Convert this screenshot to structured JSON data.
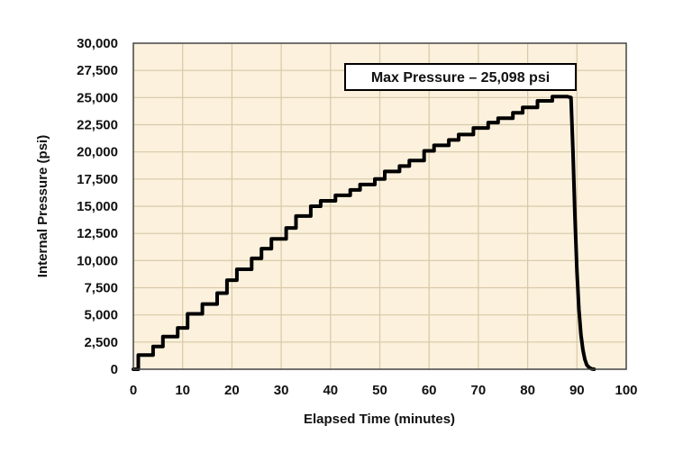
{
  "chart_data": {
    "type": "line",
    "title": "",
    "xlabel": "Elapsed Time (minutes)",
    "ylabel": "Internal Pressure (psi)",
    "xlim": [
      0,
      100
    ],
    "ylim": [
      0,
      30000
    ],
    "x_ticks": [
      0,
      10,
      20,
      30,
      40,
      50,
      60,
      70,
      80,
      90,
      100
    ],
    "x_tick_labels": [
      "0",
      "10",
      "20",
      "30",
      "40",
      "50",
      "60",
      "70",
      "80",
      "90",
      "100"
    ],
    "y_ticks": [
      0,
      2500,
      5000,
      7500,
      10000,
      12500,
      15000,
      17500,
      20000,
      22500,
      25000,
      27500,
      30000
    ],
    "y_tick_labels": [
      "0",
      "2,500",
      "5,000",
      "7,500",
      "10,000",
      "12,500",
      "15,000",
      "17,500",
      "20,000",
      "22,500",
      "25,000",
      "27,500",
      "30,000"
    ],
    "grid": true,
    "background_color": "#fbf1dc",
    "grid_color": "#d8c9a8",
    "line_color": "#000000",
    "series": [
      {
        "x": [
          0,
          1,
          1,
          4,
          4,
          6,
          6,
          9,
          9,
          11,
          11,
          14,
          14,
          17,
          17,
          19,
          19,
          21,
          21,
          24,
          24,
          26,
          26,
          28,
          28,
          31,
          31,
          33,
          33,
          36,
          36,
          38,
          38,
          41,
          41,
          44,
          44,
          46,
          46,
          49,
          49,
          51,
          51,
          54,
          54,
          56,
          56,
          59,
          59,
          61,
          61,
          64,
          64,
          66,
          66,
          69,
          69,
          72,
          72,
          74,
          74,
          77,
          77,
          79,
          79,
          82,
          82,
          85,
          85,
          88,
          88.8,
          89.2,
          89.6,
          90,
          90.4,
          90.8,
          91.2,
          91.6,
          92,
          92.5,
          93,
          93.5
        ],
        "y": [
          0,
          0,
          1300,
          1300,
          2100,
          2100,
          3000,
          3000,
          3800,
          3800,
          5100,
          5100,
          6000,
          6000,
          7000,
          7000,
          8200,
          8200,
          9200,
          9200,
          10200,
          10200,
          11100,
          11100,
          12000,
          12000,
          13000,
          13000,
          14100,
          14100,
          15000,
          15000,
          15500,
          15500,
          16000,
          16000,
          16500,
          16500,
          17000,
          17000,
          17500,
          17500,
          18200,
          18200,
          18700,
          18700,
          19200,
          19200,
          20100,
          20100,
          20600,
          20600,
          21100,
          21100,
          21600,
          21600,
          22200,
          22200,
          22700,
          22700,
          23100,
          23100,
          23600,
          23600,
          24100,
          24100,
          24700,
          24700,
          25098,
          25098,
          25000,
          20000,
          14000,
          9000,
          5500,
          3200,
          1800,
          900,
          400,
          150,
          30,
          0
        ]
      }
    ],
    "annotations": [
      {
        "text": "Max Pressure – 25,098 psi",
        "x": 80,
        "y": 26500
      }
    ]
  }
}
